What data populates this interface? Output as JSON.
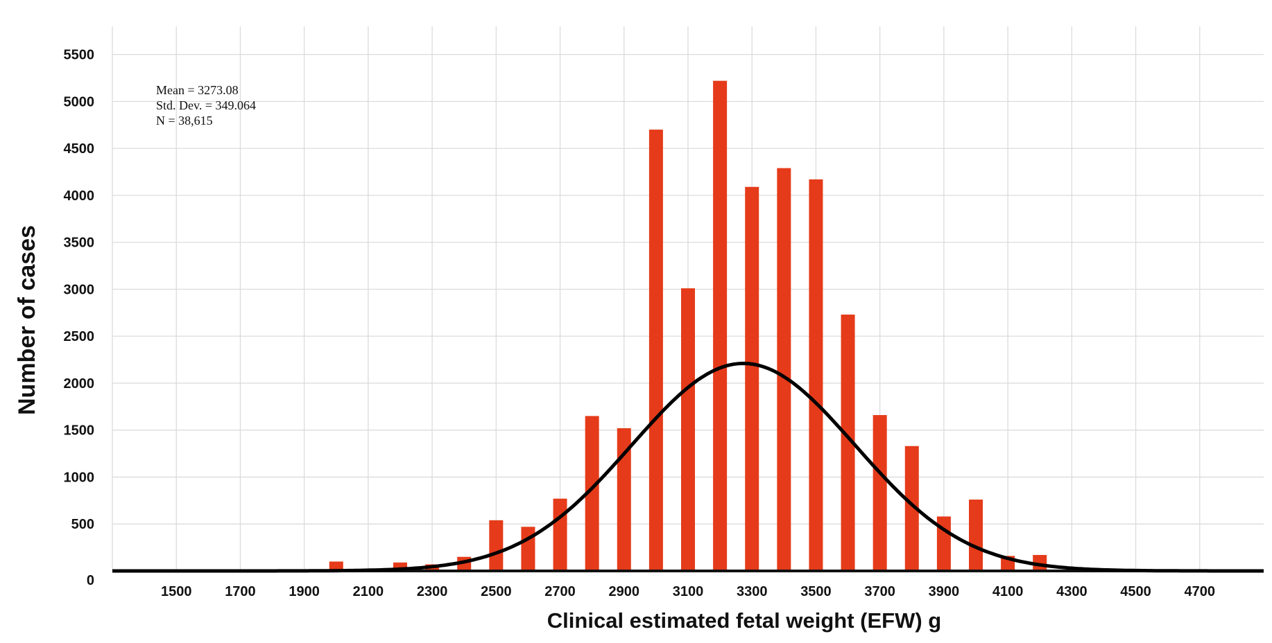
{
  "chart_data": {
    "type": "bar",
    "title": "",
    "xlabel": "Clinical estimated fetal weight (EFW) g",
    "ylabel": "Number of cases",
    "xlim": [
      1300,
      4900
    ],
    "ylim": [
      0,
      5800
    ],
    "x_ticks": [
      1500,
      1700,
      1900,
      2100,
      2300,
      2500,
      2700,
      2900,
      3100,
      3300,
      3500,
      3700,
      3900,
      4100,
      4300,
      4500,
      4700
    ],
    "x_tick_labels": [
      "1500",
      "1700",
      "1900",
      "2100",
      "2300",
      "2500",
      "2700",
      "2900",
      "3100",
      "3300",
      "3500",
      "3700",
      "3900",
      "4100",
      "4300",
      "4500",
      "4700"
    ],
    "y_ticks": [
      0,
      500,
      1000,
      1500,
      2000,
      2500,
      3000,
      3500,
      4000,
      4500,
      5000,
      5500
    ],
    "y_tick_labels": [
      "0",
      "500",
      "1000",
      "1500",
      "2000",
      "2500",
      "3000",
      "3500",
      "4000",
      "4500",
      "5000",
      "5500"
    ],
    "bin_width": 100,
    "bars": {
      "x": [
        2000,
        2200,
        2300,
        2400,
        2500,
        2600,
        2700,
        2800,
        2900,
        3000,
        3100,
        3200,
        3300,
        3400,
        3500,
        3600,
        3700,
        3800,
        3900,
        4000,
        4100,
        4200
      ],
      "values": [
        100,
        90,
        70,
        150,
        540,
        470,
        770,
        1650,
        1520,
        4700,
        3010,
        5220,
        4090,
        4290,
        4170,
        2730,
        1660,
        1330,
        580,
        760,
        160,
        170
      ]
    },
    "normal_fit": {
      "mean": 3273.08,
      "std_dev": 349.064,
      "peak": 2210
    },
    "grid": true,
    "annotations": {
      "mean_text": "Mean = 3273.08",
      "std_text": "Std. Dev. = 349.064",
      "n_text": "N = 38,615"
    },
    "colors": {
      "bar": "#e53b1a",
      "curve": "#000000",
      "grid": "#d9d9d9"
    }
  }
}
